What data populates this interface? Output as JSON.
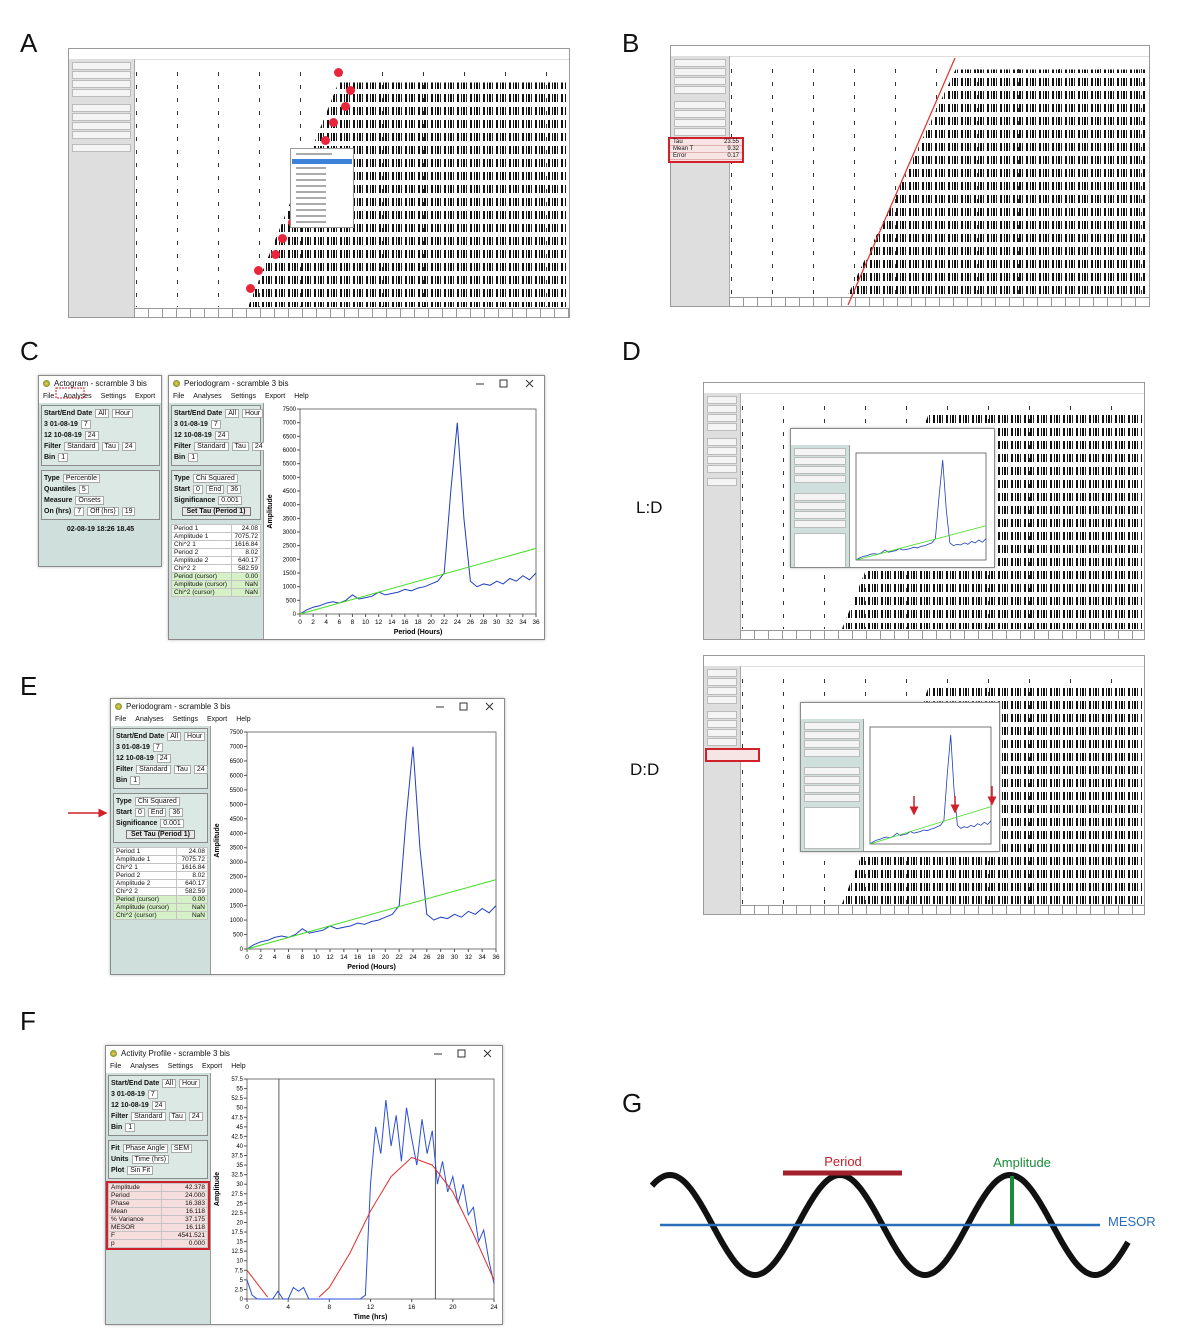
{
  "panel_labels": [
    "A",
    "B",
    "C",
    "D",
    "E",
    "F",
    "G"
  ],
  "d_labels": [
    "L:D",
    "D:D"
  ],
  "menu": [
    "File",
    "Analyses",
    "Settings",
    "Export",
    "Help"
  ],
  "sidebar_dates": [
    [
      "Start/End Date",
      "All",
      "Hour"
    ],
    [
      "3 01-08-19",
      "7"
    ],
    [
      "12 10-08-19",
      "24"
    ],
    [
      "Filter",
      "Standard",
      "Tau",
      "24"
    ],
    [
      "Bin",
      "1"
    ]
  ],
  "b_stats": [
    [
      "Tau",
      "23.55"
    ],
    [
      "Mean T",
      "9.32"
    ],
    [
      "Error",
      "0.17"
    ]
  ],
  "actogram_window": {
    "title": "Actogram - scramble 3 bis",
    "groups": [
      [
        [
          "Type",
          "Percentile"
        ],
        [
          "Quantiles",
          "5"
        ],
        [
          "Measure",
          "Onsets"
        ],
        [
          "On (hrs)",
          "7",
          "Off (hrs)",
          "19"
        ]
      ]
    ],
    "footer": "02-08-19 18:26 18.45"
  },
  "periodogram_window": {
    "title": "Periodogram - scramble 3 bis",
    "groups": [
      [
        [
          "Type",
          "Chi Squared"
        ],
        [
          "Start",
          "0",
          "End",
          "36"
        ],
        [
          "Significance",
          "0.001"
        ],
        [
          "Set Tau (Period 1)"
        ]
      ]
    ],
    "results": [
      [
        "Period 1",
        "24.08"
      ],
      [
        "Amplitude 1",
        "7075.72"
      ],
      [
        "Chi^2 1",
        "1616.84"
      ],
      [
        "Period 2",
        "8.02"
      ],
      [
        "Amplitude 2",
        "640.17"
      ],
      [
        "Chi^2 2",
        "582.59"
      ],
      [
        "Period (cursor)",
        "0.00"
      ],
      [
        "Amplitude (cursor)",
        "NaN"
      ],
      [
        "Chi^2 (cursor)",
        "NaN"
      ]
    ]
  },
  "activity_window": {
    "title": "Activity Profile - scramble 3 bis",
    "groups": [
      [
        [
          "Fit",
          "Phase Angle",
          "SEM"
        ],
        [
          "Units",
          "Time (hrs)"
        ],
        [
          "Plot",
          "Sin Fit"
        ]
      ]
    ],
    "results": [
      [
        "Amplitude",
        "42.378"
      ],
      [
        "Period",
        "24.000"
      ],
      [
        "Phase",
        "16.383"
      ],
      [
        "Mean",
        "16.118"
      ],
      [
        "% Variance",
        "37.175"
      ],
      [
        "MESOR",
        "16.118"
      ],
      [
        "F",
        "4541.521"
      ],
      [
        "p",
        "0.000"
      ]
    ]
  },
  "diagram": {
    "period_label": "Period",
    "amplitude_label": "Amplitude",
    "mesor_label": "MESOR"
  },
  "chart_data": [
    {
      "type": "line",
      "xlabel": "Period (Hours)",
      "ylabel": "Amplitude",
      "xlim": [
        0,
        36
      ],
      "xticks": [
        0,
        2,
        4,
        6,
        8,
        10,
        12,
        14,
        16,
        18,
        20,
        22,
        24,
        26,
        28,
        30,
        32,
        34,
        36
      ],
      "ylim": [
        0,
        7500
      ],
      "yticks": [
        0,
        500,
        1000,
        1500,
        2000,
        2500,
        3000,
        3500,
        4000,
        4500,
        5000,
        5500,
        6000,
        6500,
        7000,
        7500
      ],
      "series": [
        {
          "color": "#1f3fbf",
          "x": [
            0,
            1,
            2,
            3,
            4,
            5,
            6,
            7,
            8,
            9,
            10,
            11,
            12,
            13,
            14,
            15,
            16,
            17,
            18,
            19,
            20,
            21,
            22,
            23,
            24,
            25,
            26,
            27,
            28,
            29,
            30,
            31,
            32,
            33,
            34,
            35,
            36
          ],
          "values": [
            0,
            150,
            250,
            300,
            400,
            450,
            400,
            500,
            700,
            550,
            600,
            650,
            800,
            700,
            750,
            800,
            900,
            850,
            950,
            1000,
            1100,
            1200,
            1500,
            4500,
            7000,
            3500,
            1200,
            1000,
            1100,
            1050,
            1200,
            1100,
            1300,
            1200,
            1400,
            1250,
            1500
          ]
        },
        {
          "color": "#44dd22",
          "x": [
            0,
            36
          ],
          "values": [
            0,
            2400
          ]
        }
      ]
    },
    {
      "type": "line",
      "xlabel": "Time (hrs)",
      "ylabel": "Amplitude",
      "xlim": [
        0,
        24
      ],
      "xticks": [
        0,
        4,
        8,
        12,
        16,
        20,
        24
      ],
      "ylim": [
        0,
        57.5
      ],
      "yticks": [
        0,
        2.5,
        5,
        7.5,
        10,
        12.5,
        15,
        17.5,
        20,
        22.5,
        25,
        27.5,
        30,
        32.5,
        35,
        37.5,
        40,
        42.5,
        45,
        47.5,
        50,
        52.5,
        55,
        57.5
      ],
      "markers": [
        3.1,
        18.3
      ],
      "series": [
        {
          "color": "#2a4fd8",
          "x": [
            0,
            0.5,
            1,
            1.5,
            2,
            2.5,
            3,
            3.5,
            4,
            4.5,
            5,
            5.5,
            6,
            6.5,
            7,
            7.5,
            8,
            8.5,
            9,
            9.5,
            10,
            10.5,
            11,
            11.5,
            12,
            12.5,
            13,
            13.5,
            14,
            14.5,
            15,
            15.5,
            16,
            16.5,
            17,
            17.5,
            18,
            18.5,
            19,
            19.5,
            20,
            20.5,
            21,
            21.5,
            22,
            22.5,
            23,
            23.5,
            24
          ],
          "values": [
            5,
            1,
            0,
            0,
            0,
            0,
            2,
            0,
            0,
            3,
            2,
            3,
            0,
            0,
            0,
            0,
            0,
            0,
            0,
            0,
            0,
            0,
            0,
            1,
            30,
            45,
            38,
            52,
            40,
            48,
            36,
            50,
            42,
            35,
            47,
            38,
            44,
            30,
            36,
            28,
            32,
            25,
            30,
            22,
            24,
            15,
            18,
            10,
            4
          ]
        },
        {
          "color": "#e0302a",
          "x": [
            0,
            1,
            2,
            3,
            7,
            8,
            10,
            12,
            14,
            16,
            18,
            20,
            22,
            24
          ],
          "values": [
            7.5,
            4,
            0.5,
            null,
            0.5,
            3,
            12,
            23,
            32,
            37,
            35,
            28,
            17,
            5
          ]
        }
      ]
    }
  ]
}
